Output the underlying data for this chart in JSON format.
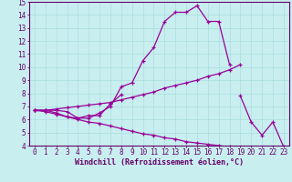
{
  "xlabel": "Windchill (Refroidissement éolien,°C)",
  "bg_color": "#c8eef0",
  "line_color": "#990099",
  "grid_color": "#aadddd",
  "xlim": [
    -0.5,
    23.5
  ],
  "ylim": [
    4,
    15
  ],
  "xticks": [
    0,
    1,
    2,
    3,
    4,
    5,
    6,
    7,
    8,
    9,
    10,
    11,
    12,
    13,
    14,
    15,
    16,
    17,
    18,
    19,
    20,
    21,
    22,
    23
  ],
  "yticks": [
    4,
    5,
    6,
    7,
    8,
    9,
    10,
    11,
    12,
    13,
    14,
    15
  ],
  "lines": [
    [
      6.7,
      6.7,
      6.5,
      6.2,
      6.1,
      6.1,
      6.5,
      7.0,
      8.5,
      8.8,
      10.5,
      11.5,
      13.5,
      14.2,
      14.2,
      14.7,
      13.5,
      13.5,
      10.2,
      null,
      null,
      null,
      null,
      null
    ],
    [
      6.7,
      6.7,
      6.7,
      6.6,
      6.1,
      6.3,
      6.3,
      7.2,
      7.9,
      null,
      null,
      null,
      null,
      null,
      null,
      null,
      null,
      null,
      null,
      null,
      null,
      null,
      null,
      null
    ],
    [
      6.7,
      6.7,
      6.8,
      6.9,
      7.0,
      7.1,
      7.2,
      7.3,
      7.5,
      7.7,
      7.9,
      8.1,
      8.4,
      8.6,
      8.8,
      9.0,
      9.3,
      9.5,
      9.8,
      10.2,
      null,
      null,
      null,
      null
    ],
    [
      6.7,
      6.6,
      6.4,
      6.2,
      6.0,
      5.8,
      5.7,
      5.5,
      5.3,
      5.1,
      4.9,
      4.8,
      4.6,
      4.5,
      4.3,
      4.2,
      4.1,
      4.0,
      3.9,
      null,
      null,
      null,
      null,
      null
    ],
    [
      null,
      null,
      null,
      null,
      null,
      null,
      null,
      null,
      null,
      null,
      null,
      null,
      null,
      null,
      null,
      null,
      null,
      null,
      null,
      7.8,
      5.8,
      4.8,
      5.8,
      3.9
    ]
  ],
  "tick_fontsize": 5.5,
  "label_fontsize": 6.0
}
